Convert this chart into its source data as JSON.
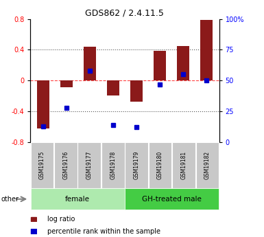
{
  "title": "GDS862 / 2.4.11.5",
  "samples": [
    "GSM19175",
    "GSM19176",
    "GSM19177",
    "GSM19178",
    "GSM19179",
    "GSM19180",
    "GSM19181",
    "GSM19182"
  ],
  "log_ratio": [
    -0.62,
    -0.09,
    0.44,
    -0.19,
    -0.27,
    0.39,
    0.45,
    0.79
  ],
  "percentile_rank": [
    13,
    28,
    58,
    14,
    12,
    47,
    55,
    50
  ],
  "bar_color": "#8B1A1A",
  "dot_color": "#0000CC",
  "groups": [
    {
      "label": "female",
      "start": 0,
      "end": 3,
      "color": "#AEEAAE"
    },
    {
      "label": "GH-treated male",
      "start": 4,
      "end": 7,
      "color": "#44CC44"
    }
  ],
  "ylim": [
    -0.8,
    0.8
  ],
  "yticks_left": [
    -0.8,
    -0.4,
    0.0,
    0.4,
    0.8
  ],
  "yticks_right": [
    0,
    25,
    50,
    75,
    100
  ],
  "right_axis_labels": [
    "0",
    "25",
    "50",
    "75",
    "100%"
  ],
  "grid_lines_dotted": [
    -0.4,
    0.4
  ],
  "zero_line_color": "#FF4444",
  "grid_color": "#555555",
  "legend_items": [
    "log ratio",
    "percentile rank within the sample"
  ],
  "other_label": "other",
  "sample_box_color": "#C8C8C8",
  "bar_width": 0.55
}
